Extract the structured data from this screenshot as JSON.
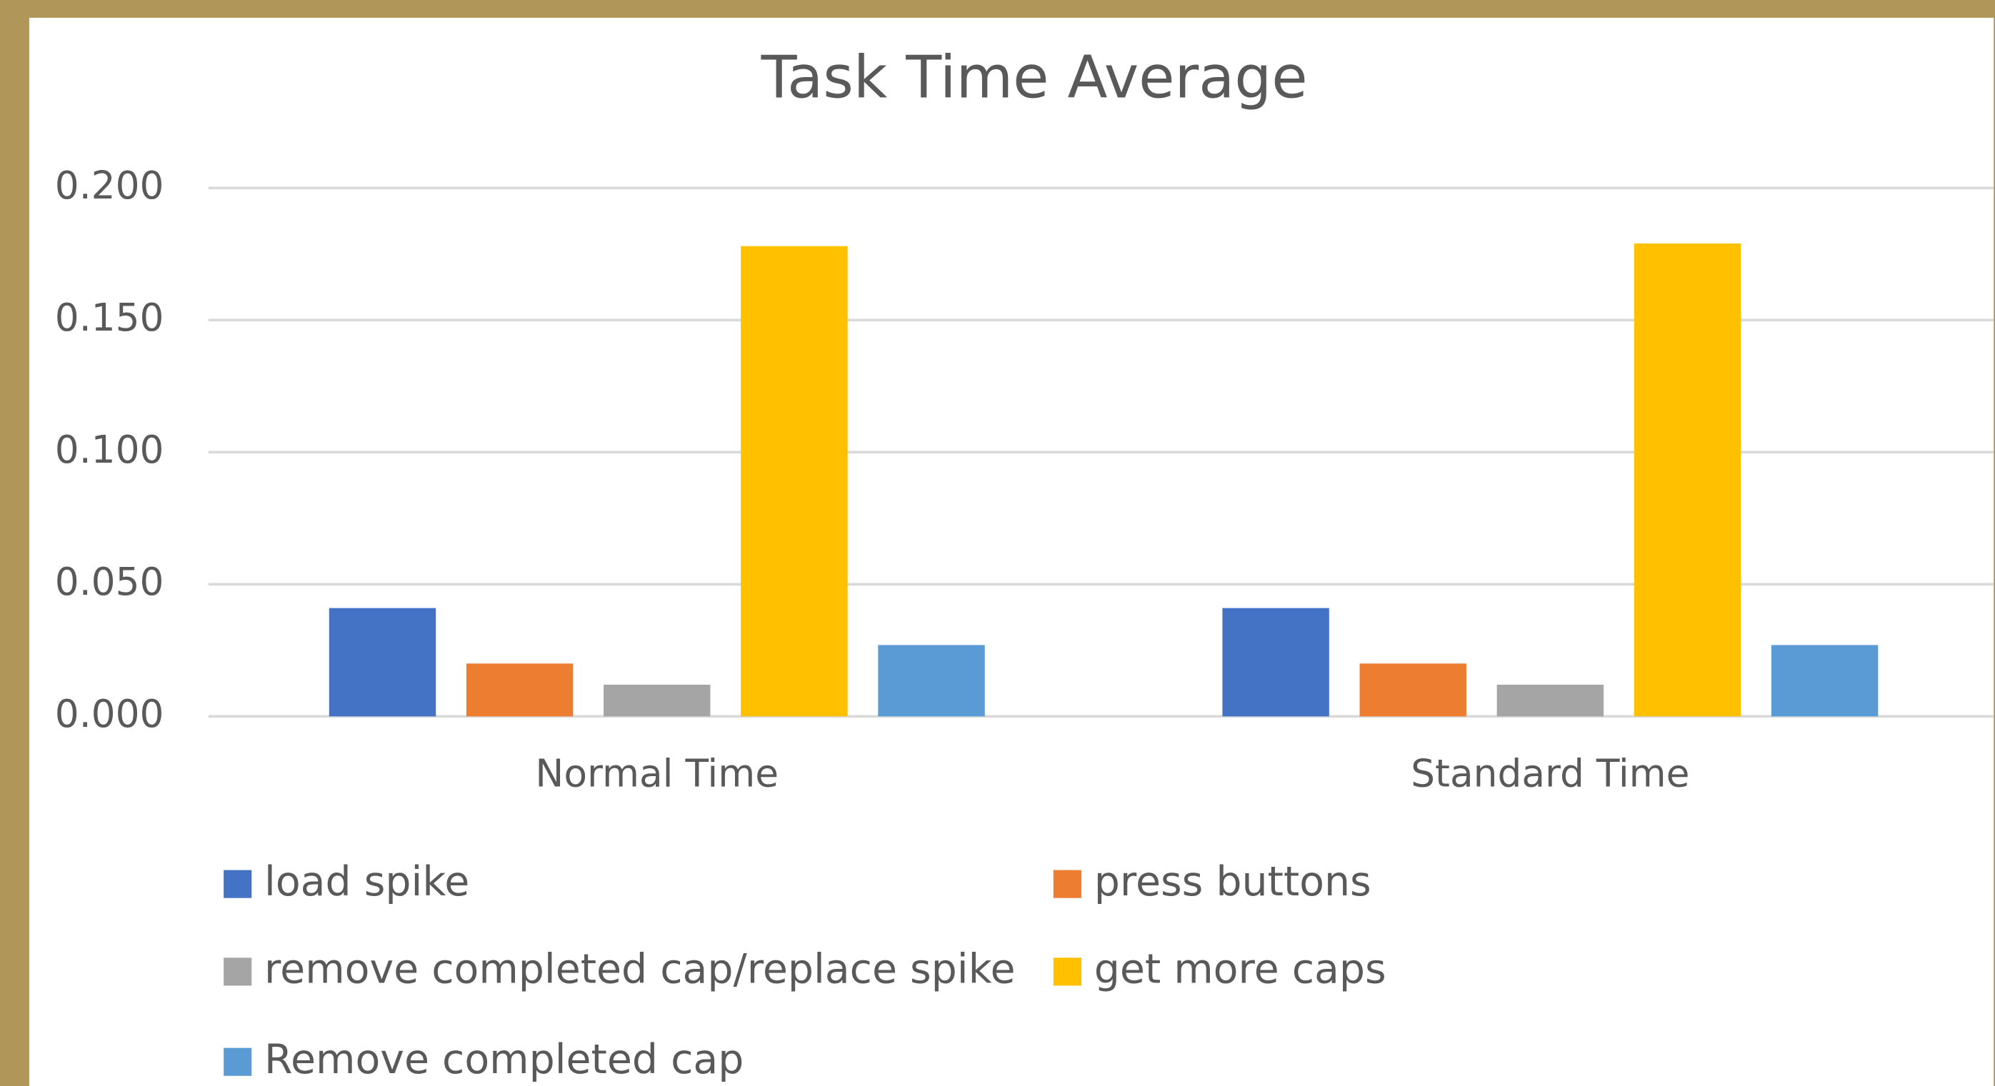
{
  "chart_data": {
    "type": "bar",
    "title": "Task Time Average",
    "categories": [
      "Normal Time",
      "Standard Time"
    ],
    "series": [
      {
        "name": "load spike",
        "color": "#4472c4",
        "values": [
          0.041,
          0.041
        ]
      },
      {
        "name": "press buttons",
        "color": "#ed7d31",
        "values": [
          0.02,
          0.02
        ]
      },
      {
        "name": "remove completed cap/replace spike",
        "color": "#a5a5a5",
        "values": [
          0.012,
          0.012
        ]
      },
      {
        "name": "get more caps",
        "color": "#ffc000",
        "values": [
          0.178,
          0.179
        ]
      },
      {
        "name": "Remove completed cap",
        "color": "#5b9bd5",
        "values": [
          0.027,
          0.027
        ]
      }
    ],
    "ylim": [
      0,
      0.2
    ],
    "yticks": [
      {
        "value": 0,
        "label": "0.000"
      },
      {
        "value": 0.05,
        "label": "0.050"
      },
      {
        "value": 0.1,
        "label": "0.100"
      },
      {
        "value": 0.15,
        "label": "0.150"
      },
      {
        "value": 0.2,
        "label": "0.200"
      }
    ],
    "grid": true,
    "legend": "bottom"
  }
}
